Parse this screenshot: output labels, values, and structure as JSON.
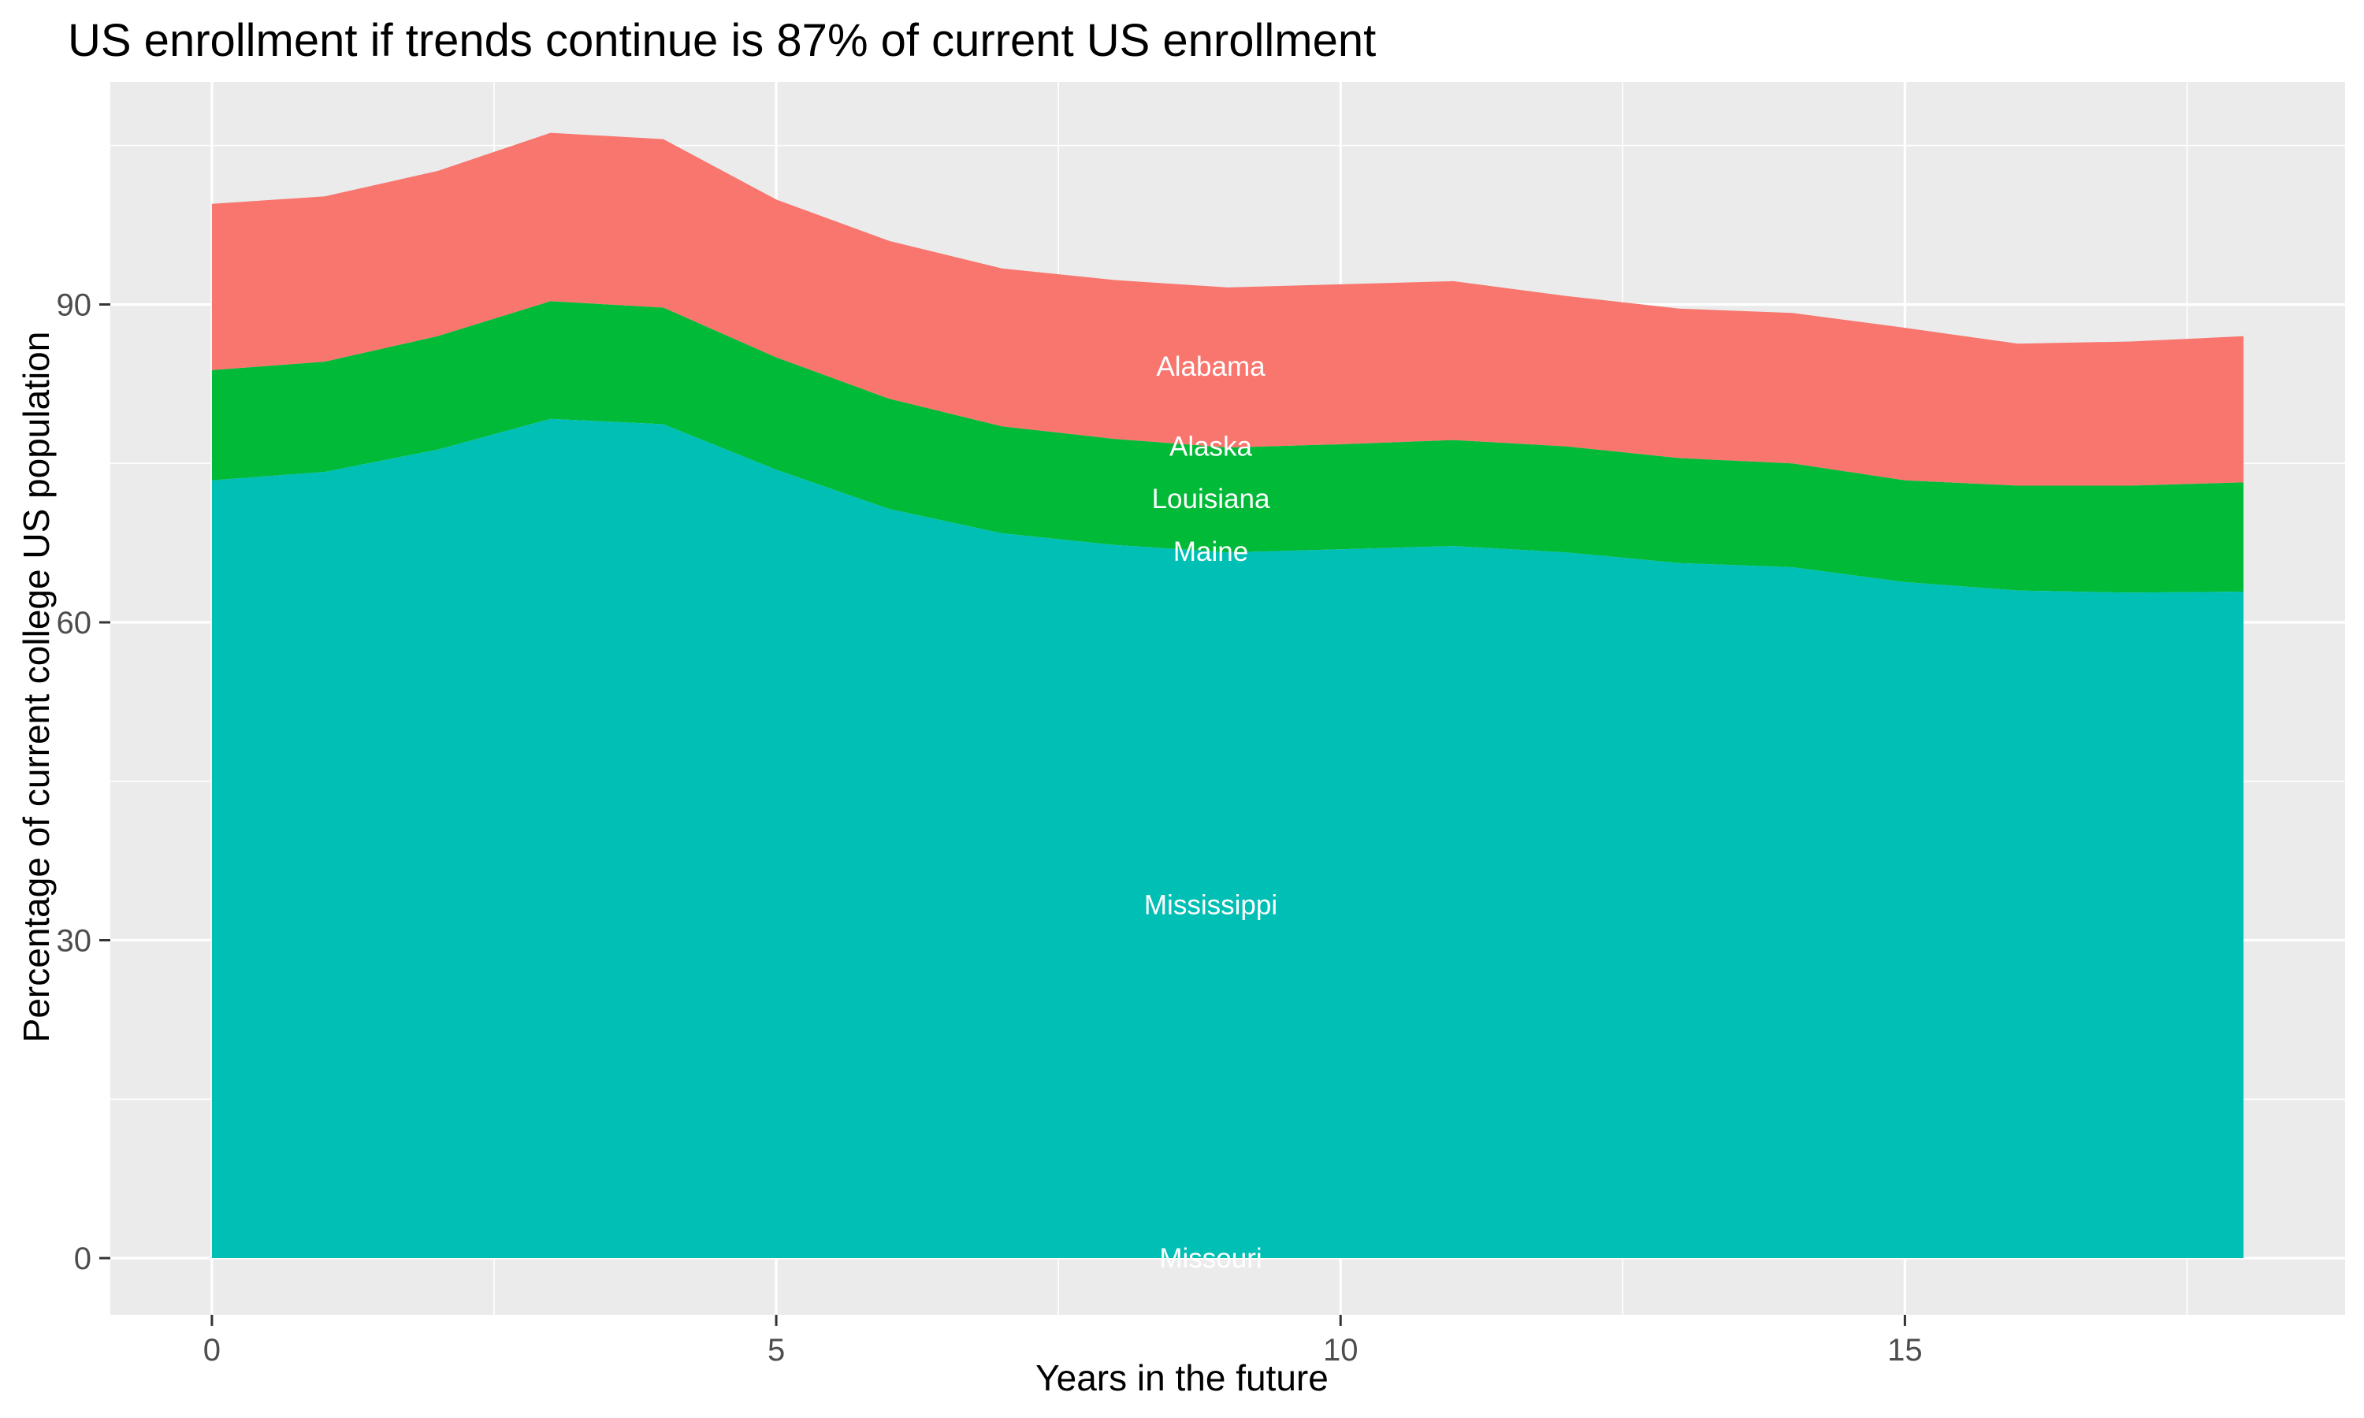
{
  "title": "US enrollment if trends continue is 87% of current US enrollment",
  "chart_data": {
    "type": "area",
    "stacked": true,
    "title": "US enrollment if trends continue is 87% of current US enrollment",
    "xlabel": "Years in the future",
    "ylabel": "Percentage of current college US population",
    "x": [
      0,
      1,
      2,
      3,
      4,
      5,
      6,
      7,
      8,
      9,
      10,
      11,
      12,
      13,
      14,
      15,
      16,
      17,
      18
    ],
    "series": [
      {
        "name": "Alabama",
        "color": "#F8766D",
        "label_color": "#FFFFFF",
        "values": [
          15.7,
          15.6,
          15.6,
          15.9,
          15.9,
          14.9,
          14.9,
          14.9,
          15.0,
          15.1,
          15.1,
          15.0,
          14.2,
          14.1,
          14.2,
          14.4,
          13.4,
          13.6,
          13.8
        ]
      },
      {
        "name": "Alaska",
        "color": "#B79F00",
        "label_color": "#FFFFFF",
        "values": [
          0,
          0,
          0,
          0,
          0,
          0,
          0,
          0,
          0,
          0,
          0,
          0,
          0,
          0,
          0,
          0,
          0,
          0,
          0
        ]
      },
      {
        "name": "Louisiana",
        "color": "#00BA38",
        "label_color": "#FFFFFF",
        "values": [
          10.4,
          10.4,
          10.7,
          11.1,
          11.0,
          10.6,
          10.4,
          10.1,
          10.0,
          9.9,
          9.9,
          10.0,
          10.0,
          9.9,
          9.8,
          9.6,
          9.9,
          10.1,
          10.3
        ]
      },
      {
        "name": "Maine",
        "color": "#00BFC4",
        "label_color": "#FFFFFF",
        "values": [
          0,
          0,
          0,
          0,
          0,
          0,
          0,
          0,
          0,
          0,
          0,
          0,
          0,
          0,
          0,
          0,
          0,
          0,
          0
        ]
      },
      {
        "name": "Mississippi",
        "color": "#00BFB4",
        "label_color": "#FFFFFF",
        "values": [
          73.4,
          74.2,
          76.3,
          79.2,
          78.7,
          74.4,
          70.7,
          68.4,
          67.3,
          66.6,
          66.9,
          67.2,
          66.6,
          65.6,
          65.2,
          63.8,
          63.0,
          62.8,
          62.9
        ]
      },
      {
        "name": "Missouri",
        "color": "#F564E3",
        "label_color": "#FFFFFF",
        "values": [
          0,
          0,
          0,
          0,
          0,
          0,
          0,
          0,
          0,
          0,
          0,
          0,
          0,
          0,
          0,
          0,
          0,
          0,
          0
        ]
      }
    ],
    "totals_stacked": [
      99.5,
      100.2,
      102.6,
      106.2,
      105.6,
      99.9,
      96.0,
      93.4,
      92.3,
      91.6,
      91.9,
      92.2,
      90.8,
      89.6,
      89.2,
      87.8,
      86.3,
      86.5,
      87.0
    ],
    "label_x_years": 8.85,
    "x_ticks": [
      0,
      5,
      10,
      15
    ],
    "y_ticks": [
      0,
      30,
      60,
      90
    ],
    "x_minor_ticks": [
      2.5,
      7.5,
      12.5,
      17.5
    ],
    "y_minor_ticks": [
      15,
      45,
      75,
      105
    ],
    "xlim": [
      -0.9,
      18.9
    ],
    "ylim": [
      -5.35,
      111.0
    ],
    "legend_position": "none",
    "grid": true,
    "panel_background": "#EBEBEB",
    "grid_color": "#FFFFFF",
    "tick_mark_color": "#333333",
    "tick_label_color": "#4D4D4D"
  }
}
